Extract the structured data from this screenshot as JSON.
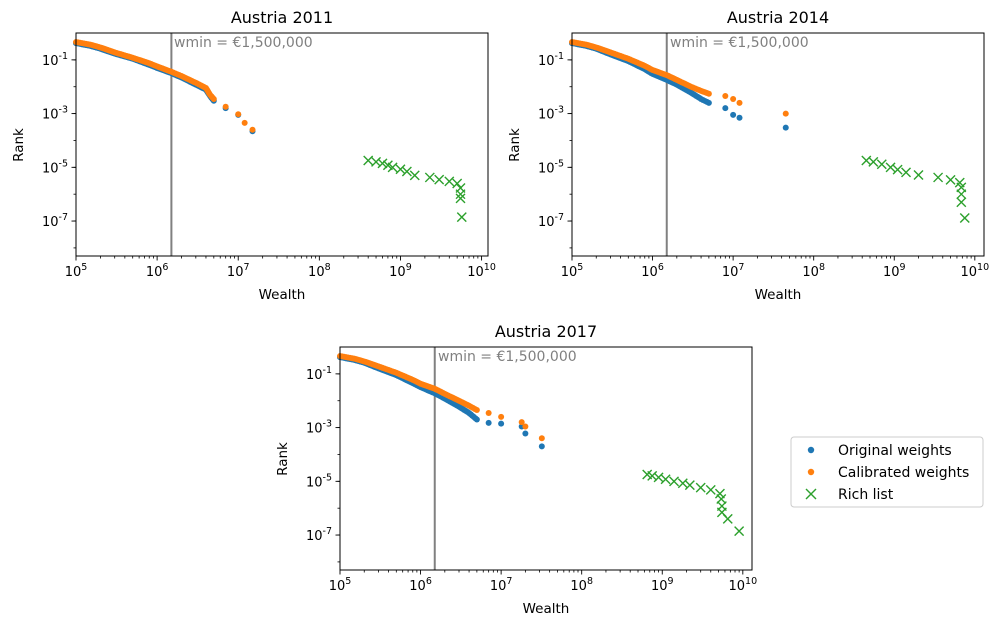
{
  "colors": {
    "original": "#1f77b4",
    "calibrated": "#ff7f0e",
    "rich": "#2ca02c",
    "wmin_line": "#808080"
  },
  "chart_data": [
    {
      "type": "scatter",
      "title": "Austria 2011",
      "xlabel": "Wealth",
      "ylabel": "Rank",
      "xscale": "log",
      "yscale": "log",
      "xlim": [
        100000,
        12000000000
      ],
      "ylim": [
        5e-09,
        1
      ],
      "x_ticks": [
        "10^5",
        "10^6",
        "10^7",
        "10^8",
        "10^9",
        "10^10"
      ],
      "y_ticks": [
        "10^-1",
        "10^-3",
        "10^-5",
        "10^-7"
      ],
      "grid": false,
      "wmin": 1500000,
      "wmin_label": "wmin = €1,500,000",
      "series": [
        {
          "name": "Original weights",
          "marker": "dot",
          "points": [
            [
              100000,
              0.42
            ],
            [
              150000,
              0.33
            ],
            [
              200000,
              0.26
            ],
            [
              300000,
              0.17
            ],
            [
              500000,
              0.11
            ],
            [
              800000,
              0.065
            ],
            [
              1000000,
              0.05
            ],
            [
              1500000,
              0.032
            ],
            [
              2000000,
              0.022
            ],
            [
              3000000,
              0.012
            ],
            [
              4000000,
              0.0078
            ],
            [
              4500000,
              0.0045
            ],
            [
              5000000,
              0.003
            ],
            [
              7000000,
              0.0016
            ],
            [
              10000000,
              0.0009
            ],
            [
              15000000,
              0.00022
            ]
          ]
        },
        {
          "name": "Calibrated weights",
          "marker": "dot",
          "points": [
            [
              100000,
              0.46
            ],
            [
              150000,
              0.37
            ],
            [
              200000,
              0.29
            ],
            [
              300000,
              0.19
            ],
            [
              500000,
              0.12
            ],
            [
              800000,
              0.075
            ],
            [
              1000000,
              0.057
            ],
            [
              1500000,
              0.036
            ],
            [
              2000000,
              0.025
            ],
            [
              3000000,
              0.014
            ],
            [
              4000000,
              0.009
            ],
            [
              4500000,
              0.005
            ],
            [
              5000000,
              0.0035
            ],
            [
              7000000,
              0.0018
            ],
            [
              10000000,
              0.00095
            ],
            [
              12000000,
              0.00045
            ],
            [
              15000000,
              0.00025
            ]
          ]
        },
        {
          "name": "Rich list",
          "marker": "x",
          "points": [
            [
              400000000,
              1.8e-05
            ],
            [
              500000000,
              1.6e-05
            ],
            [
              600000000,
              1.4e-05
            ],
            [
              700000000,
              1.2e-05
            ],
            [
              800000000,
              1e-05
            ],
            [
              1000000000,
              8.5e-06
            ],
            [
              1200000000,
              7e-06
            ],
            [
              1500000000,
              5e-06
            ],
            [
              2300000000,
              4.2e-06
            ],
            [
              3000000000,
              3.5e-06
            ],
            [
              4000000000,
              3e-06
            ],
            [
              5000000000,
              2.5e-06
            ],
            [
              5500000000,
              1.7e-06
            ],
            [
              5500000000,
              1e-06
            ],
            [
              5500000000,
              7e-07
            ],
            [
              5700000000,
              1.4e-07
            ]
          ]
        }
      ]
    },
    {
      "type": "scatter",
      "title": "Austria 2014",
      "xlabel": "Wealth",
      "ylabel": "Rank",
      "xscale": "log",
      "yscale": "log",
      "xlim": [
        100000,
        13000000000
      ],
      "ylim": [
        5e-09,
        1
      ],
      "x_ticks": [
        "10^5",
        "10^6",
        "10^7",
        "10^8",
        "10^9",
        "10^10"
      ],
      "y_ticks": [
        "10^-1",
        "10^-3",
        "10^-5",
        "10^-7"
      ],
      "grid": false,
      "wmin": 1500000,
      "wmin_label": "wmin = €1,500,000",
      "series": [
        {
          "name": "Original weights",
          "marker": "dot",
          "points": [
            [
              100000,
              0.42
            ],
            [
              150000,
              0.33
            ],
            [
              200000,
              0.26
            ],
            [
              300000,
              0.16
            ],
            [
              500000,
              0.09
            ],
            [
              800000,
              0.045
            ],
            [
              1000000,
              0.03
            ],
            [
              1500000,
              0.018
            ],
            [
              2000000,
              0.012
            ],
            [
              3000000,
              0.006
            ],
            [
              4000000,
              0.0035
            ],
            [
              5000000,
              0.0025
            ],
            [
              8000000,
              0.0016
            ],
            [
              10000000,
              0.0009
            ],
            [
              12000000,
              0.0007
            ],
            [
              45000000,
              0.0003
            ]
          ]
        },
        {
          "name": "Calibrated weights",
          "marker": "dot",
          "points": [
            [
              100000,
              0.46
            ],
            [
              150000,
              0.37
            ],
            [
              200000,
              0.29
            ],
            [
              300000,
              0.19
            ],
            [
              500000,
              0.11
            ],
            [
              800000,
              0.06
            ],
            [
              1000000,
              0.042
            ],
            [
              1500000,
              0.027
            ],
            [
              2000000,
              0.018
            ],
            [
              3000000,
              0.01
            ],
            [
              4000000,
              0.007
            ],
            [
              5000000,
              0.0055
            ],
            [
              8000000,
              0.0045
            ],
            [
              10000000,
              0.0035
            ],
            [
              12000000,
              0.0025
            ],
            [
              45000000,
              0.001
            ]
          ]
        },
        {
          "name": "Rich list",
          "marker": "x",
          "points": [
            [
              450000000,
              1.8e-05
            ],
            [
              550000000,
              1.6e-05
            ],
            [
              700000000,
              1.3e-05
            ],
            [
              900000000,
              1e-05
            ],
            [
              1100000000,
              8.2e-06
            ],
            [
              1400000000,
              6.5e-06
            ],
            [
              2000000000,
              5.2e-06
            ],
            [
              3500000000,
              4.2e-06
            ],
            [
              5000000000,
              3.4e-06
            ],
            [
              6500000000,
              2.7e-06
            ],
            [
              6800000000,
              1.8e-06
            ],
            [
              6800000000,
              1e-06
            ],
            [
              6800000000,
              5e-07
            ],
            [
              7500000000,
              1.3e-07
            ]
          ]
        }
      ]
    },
    {
      "type": "scatter",
      "title": "Austria 2017",
      "xlabel": "Wealth",
      "ylabel": "Rank",
      "xscale": "log",
      "yscale": "log",
      "xlim": [
        100000,
        13000000000
      ],
      "ylim": [
        5e-09,
        1
      ],
      "x_ticks": [
        "10^5",
        "10^6",
        "10^7",
        "10^8",
        "10^9",
        "10^10"
      ],
      "y_ticks": [
        "10^-1",
        "10^-3",
        "10^-5",
        "10^-7"
      ],
      "grid": false,
      "wmin": 1500000,
      "wmin_label": "wmin = €1,500,000",
      "series": [
        {
          "name": "Original weights",
          "marker": "dot",
          "points": [
            [
              100000,
              0.42
            ],
            [
              150000,
              0.33
            ],
            [
              200000,
              0.26
            ],
            [
              300000,
              0.16
            ],
            [
              500000,
              0.09
            ],
            [
              800000,
              0.045
            ],
            [
              1000000,
              0.032
            ],
            [
              1500000,
              0.019
            ],
            [
              2000000,
              0.012
            ],
            [
              3000000,
              0.006
            ],
            [
              4000000,
              0.0035
            ],
            [
              5000000,
              0.002
            ],
            [
              7000000,
              0.0015
            ],
            [
              10000000,
              0.0014
            ],
            [
              18000000,
              0.0011
            ],
            [
              20000000,
              0.0006
            ],
            [
              32000000,
              0.0002
            ]
          ]
        },
        {
          "name": "Calibrated weights",
          "marker": "dot",
          "points": [
            [
              100000,
              0.46
            ],
            [
              150000,
              0.37
            ],
            [
              200000,
              0.29
            ],
            [
              300000,
              0.19
            ],
            [
              500000,
              0.11
            ],
            [
              800000,
              0.06
            ],
            [
              1000000,
              0.043
            ],
            [
              1500000,
              0.028
            ],
            [
              2000000,
              0.018
            ],
            [
              3000000,
              0.01
            ],
            [
              4000000,
              0.0065
            ],
            [
              5000000,
              0.0045
            ],
            [
              7000000,
              0.0035
            ],
            [
              10000000,
              0.0025
            ],
            [
              18000000,
              0.0016
            ],
            [
              20000000,
              0.0011
            ],
            [
              32000000,
              0.0004
            ]
          ]
        },
        {
          "name": "Rich list",
          "marker": "x",
          "points": [
            [
              650000000,
              1.8e-05
            ],
            [
              750000000,
              1.6e-05
            ],
            [
              900000000,
              1.4e-05
            ],
            [
              1100000000,
              1.2e-05
            ],
            [
              1400000000,
              1e-05
            ],
            [
              1800000000,
              8.5e-06
            ],
            [
              2200000000,
              7.2e-06
            ],
            [
              3000000000,
              5.8e-06
            ],
            [
              4000000000,
              4.8e-06
            ],
            [
              5200000000,
              3.5e-06
            ],
            [
              5400000000,
              2.2e-06
            ],
            [
              5500000000,
              1.2e-06
            ],
            [
              5500000000,
              7e-07
            ],
            [
              6500000000,
              4e-07
            ],
            [
              9000000000,
              1.4e-07
            ]
          ]
        }
      ]
    }
  ],
  "legend": {
    "placement": "right",
    "entries": [
      {
        "label": "Original weights",
        "marker": "dot"
      },
      {
        "label": "Calibrated weights",
        "marker": "dot"
      },
      {
        "label": "Rich list",
        "marker": "x"
      }
    ]
  }
}
